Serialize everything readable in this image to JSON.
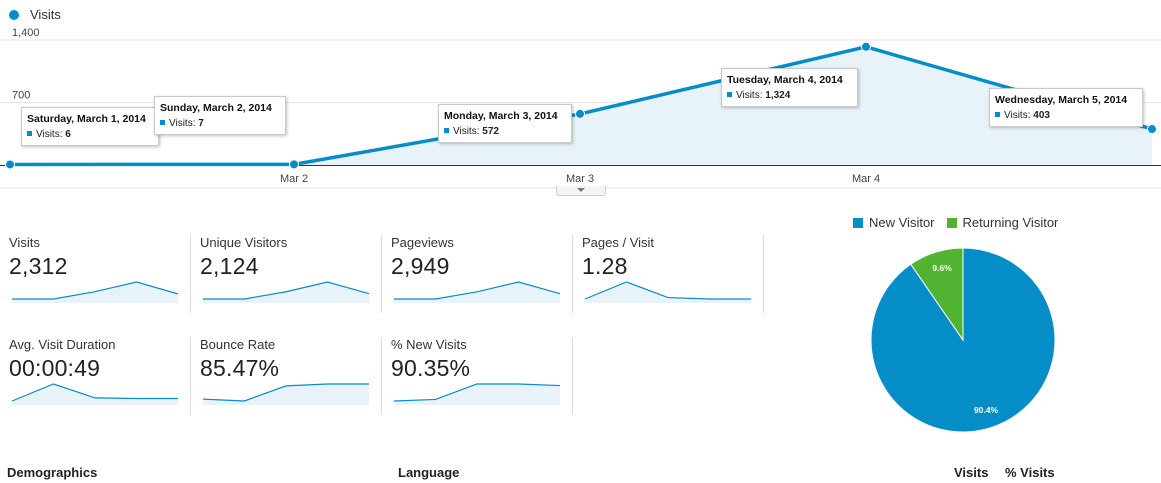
{
  "header": {
    "series_label": "Visits"
  },
  "chart_data": [
    {
      "type": "area",
      "series": [
        {
          "name": "Visits",
          "color": "#058dc7",
          "points": [
            {
              "date": "Saturday, March 1, 2014",
              "value": 6
            },
            {
              "date": "Sunday, March 2, 2014",
              "value": 7
            },
            {
              "date": "Monday, March 3, 2014",
              "value": 572
            },
            {
              "date": "Tuesday, March 4, 2014",
              "value": 1324
            },
            {
              "date": "Wednesday, March 5, 2014",
              "value": 403
            }
          ]
        }
      ],
      "x_tick_labels": [
        "Mar 2",
        "Mar 3",
        "Mar 4"
      ],
      "y_tick_labels": [
        "1,400",
        "700"
      ],
      "ylim": [
        0,
        1400
      ],
      "grid": true
    },
    {
      "type": "pie",
      "slices": [
        {
          "label": "New Visitor",
          "value": 90.4,
          "display": "90.4%",
          "color": "#058dc7"
        },
        {
          "label": "Returning Visitor",
          "value": 9.6,
          "display": "9.6%",
          "color": "#50b432"
        }
      ],
      "legend_position": "top"
    }
  ],
  "tooltips": [
    {
      "date": "Saturday, March 1, 2014",
      "label": "Visits:",
      "value": "6"
    },
    {
      "date": "Sunday, March 2, 2014",
      "label": "Visits:",
      "value": "7"
    },
    {
      "date": "Monday, March 3, 2014",
      "label": "Visits:",
      "value": "572"
    },
    {
      "date": "Tuesday, March 4, 2014",
      "label": "Visits:",
      "value": "1,324"
    },
    {
      "date": "Wednesday, March 5, 2014",
      "label": "Visits:",
      "value": "403"
    }
  ],
  "metrics": [
    {
      "label": "Visits",
      "value": "2,312",
      "trend": [
        6,
        7,
        572,
        1324,
        403
      ]
    },
    {
      "label": "Unique Visitors",
      "value": "2,124",
      "trend": [
        5,
        6,
        520,
        1210,
        380
      ]
    },
    {
      "label": "Pageviews",
      "value": "2,949",
      "trend": [
        8,
        9,
        700,
        1650,
        520
      ]
    },
    {
      "label": "Pages / Visit",
      "value": "1.28",
      "trend": [
        1.25,
        1.6,
        1.28,
        1.25,
        1.25
      ]
    },
    {
      "label": "Avg. Visit Duration",
      "value": "00:00:49",
      "trend": [
        20,
        75,
        30,
        28,
        28
      ]
    },
    {
      "label": "Bounce Rate",
      "value": "85.47%",
      "trend": [
        80,
        79,
        87,
        88,
        88
      ]
    },
    {
      "label": "% New Visits",
      "value": "90.35%",
      "trend": [
        80,
        81,
        91,
        91,
        90
      ]
    }
  ],
  "sections": {
    "demographics": "Demographics",
    "language": "Language",
    "col_visits": "Visits",
    "col_pct_visits": "% Visits"
  }
}
